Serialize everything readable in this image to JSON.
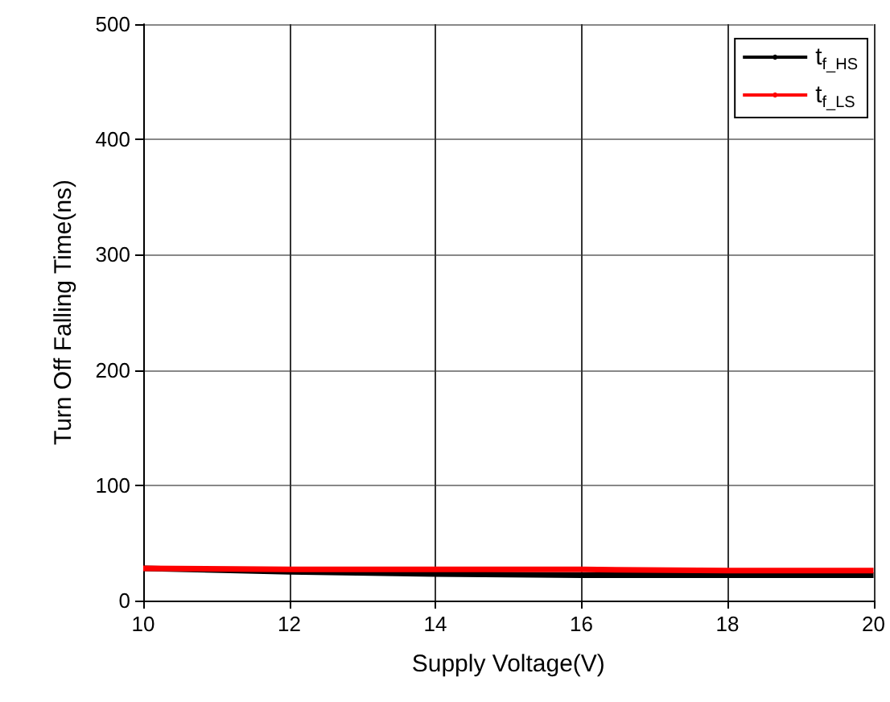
{
  "chart_data": {
    "type": "line",
    "xlabel": "Supply Voltage(V)",
    "ylabel": "Turn Off Falling Time(ns)",
    "x": [
      10,
      12,
      14,
      16,
      18,
      20
    ],
    "series": [
      {
        "name": "t$_{f_HS}$",
        "color": "#000000",
        "values": [
          28,
          25,
          23,
          22,
          22,
          22
        ]
      },
      {
        "name": "t$_{f_LS}$",
        "color": "#ff0000",
        "values": [
          28,
          27,
          27,
          27,
          26,
          26
        ]
      }
    ],
    "xlim": [
      10,
      20
    ],
    "xticks": [
      10,
      12,
      14,
      16,
      18,
      20
    ],
    "ylim": [
      0,
      500
    ],
    "yticks": [
      0,
      100,
      200,
      300,
      400,
      500
    ],
    "grid": true,
    "legend": "top right",
    "marker": "none",
    "line_style": "solid"
  }
}
